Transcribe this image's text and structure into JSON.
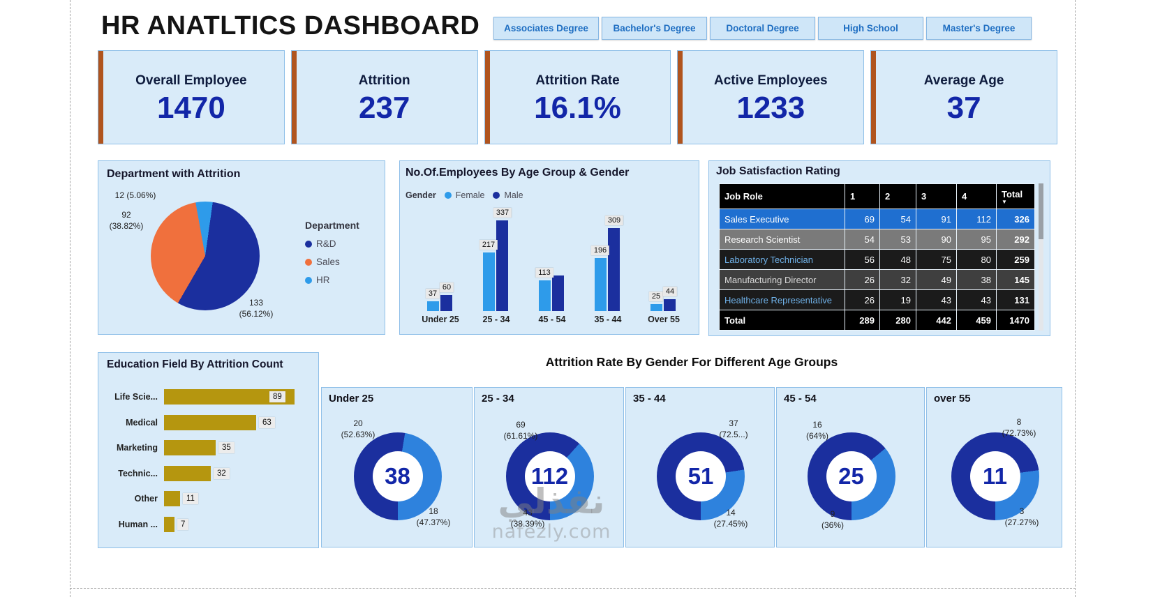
{
  "page": {
    "title": "HR ANATLTICS DASHBOARD",
    "watermark_line1": "نفذلي",
    "watermark_line2": "nafezly.com"
  },
  "filters": [
    {
      "label": "Associates Degree"
    },
    {
      "label": "Bachelor's Degree"
    },
    {
      "label": "Doctoral Degree"
    },
    {
      "label": "High School"
    },
    {
      "label": "Master's Degree"
    }
  ],
  "kpis": [
    {
      "label": "Overall Employee",
      "value": "1470"
    },
    {
      "label": "Attrition",
      "value": "237"
    },
    {
      "label": "Attrition Rate",
      "value": "16.1%"
    },
    {
      "label": "Active Employees",
      "value": "1233"
    },
    {
      "label": "Average Age",
      "value": "37"
    }
  ],
  "colors": {
    "navy": "#1b2f9e",
    "cyan": "#2e9bea",
    "donut_blue": "#2e82dd",
    "orange": "#f0703d",
    "gold": "#b5960f",
    "kpi_accent": "#b0541e",
    "panel_bg": "#d9ebf9",
    "panel_border": "#8fbfe8",
    "kpi_value_color": "#1226a8",
    "button_bg": "#cfe6f8",
    "button_text": "#1e6ec2",
    "table_highlight_row": "#1f6fd0"
  },
  "chart_data": [
    {
      "id": "department_pie",
      "type": "pie",
      "title": "Department with Attrition",
      "legend_title": "Department",
      "slices": [
        {
          "label": "R&D",
          "value": 133,
          "pct": 56.12,
          "value_label": "133",
          "pct_label": "(56.12%)",
          "color": "#1b2f9e"
        },
        {
          "label": "Sales",
          "value": 92,
          "pct": 38.82,
          "value_label": "92",
          "pct_label": "(38.82%)",
          "color": "#f0703d"
        },
        {
          "label": "HR",
          "value": 12,
          "pct": 5.06,
          "value_label": "12 (5.06%)",
          "pct_label": "",
          "color": "#2e9bea"
        }
      ]
    },
    {
      "id": "age_gender_bar",
      "type": "bar",
      "title": "No.Of.Employees By Age Group & Gender",
      "legend_title": "Gender",
      "categories": [
        "Under 25",
        "25 - 34",
        "45 - 54",
        "35 - 44",
        "Over 55"
      ],
      "series": [
        {
          "name": "Female",
          "color": "#2e9bea",
          "values": [
            37,
            217,
            113,
            196,
            25
          ],
          "labels": [
            "37",
            "217",
            "113",
            "196",
            "25"
          ]
        },
        {
          "name": "Male",
          "color": "#1b2f9e",
          "values": [
            60,
            337,
            132,
            309,
            44
          ],
          "labels": [
            "60",
            "337",
            "",
            "309",
            "44"
          ]
        }
      ],
      "ymax": 337,
      "grid": false,
      "legend_position": "top-left"
    },
    {
      "id": "job_satisfaction_table",
      "type": "table",
      "title": "Job Satisfaction Rating",
      "columns": [
        "Job Role",
        "1",
        "2",
        "3",
        "4",
        "Total"
      ],
      "sort_column": "Total",
      "sort_icon": "▼",
      "rows": [
        {
          "cells": [
            "Sales Executive",
            "69",
            "54",
            "91",
            "112",
            "326"
          ],
          "bg": "#1f6fd0",
          "name_color": "#ffffff"
        },
        {
          "cells": [
            "Research Scientist",
            "54",
            "53",
            "90",
            "95",
            "292"
          ],
          "bg": "#7a7a7a",
          "name_color": "#ffffff"
        },
        {
          "cells": [
            "Laboratory Technician",
            "56",
            "48",
            "75",
            "80",
            "259"
          ],
          "bg": "#1b1b1b",
          "name_color": "#6fb1e8"
        },
        {
          "cells": [
            "Manufacturing Director",
            "26",
            "32",
            "49",
            "38",
            "145"
          ],
          "bg": "#3f3f3f",
          "name_color": "#d9d9d9"
        },
        {
          "cells": [
            "Healthcare Representative",
            "26",
            "19",
            "43",
            "43",
            "131"
          ],
          "bg": "#1b1b1b",
          "name_color": "#6fb1e8"
        }
      ],
      "total_row": [
        "Total",
        "289",
        "280",
        "442",
        "459",
        "1470"
      ]
    },
    {
      "id": "education_attrition_bar",
      "type": "bar",
      "orientation": "horizontal",
      "title": "Education Field By Attrition Count",
      "categories": [
        "Life Scie...",
        "Medical",
        "Marketing",
        "Technic...",
        "Other",
        "Human ..."
      ],
      "values": [
        89,
        63,
        35,
        32,
        11,
        7
      ],
      "xmax": 89,
      "color": "#b5960f"
    },
    {
      "id": "attrition_donuts",
      "type": "pie",
      "variant": "donut-multiples",
      "title": "Attrition Rate By Gender For Different Age Groups",
      "donuts": [
        {
          "title": "Under 25",
          "center": "38",
          "seg1": {
            "value": "20",
            "pct": 52.63,
            "pct_label": "(52.63%)"
          },
          "seg2": {
            "value": "18",
            "pct": 47.37,
            "pct_label": "(47.37%)"
          }
        },
        {
          "title": "25 - 34",
          "center": "112",
          "seg1": {
            "value": "69",
            "pct": 61.61,
            "pct_label": "(61.61%)"
          },
          "seg2": {
            "value": "43",
            "pct": 38.39,
            "pct_label": "(38.39%)"
          }
        },
        {
          "title": "35 - 44",
          "center": "51",
          "seg1": {
            "value": "37",
            "pct": 72.55,
            "pct_label": "(72.5...)"
          },
          "seg2": {
            "value": "14",
            "pct": 27.45,
            "pct_label": "(27.45%)"
          }
        },
        {
          "title": "45 - 54",
          "center": "25",
          "seg1": {
            "value": "16",
            "pct": 64,
            "pct_label": "(64%)"
          },
          "seg2": {
            "value": "9",
            "pct": 36,
            "pct_label": "(36%)"
          }
        },
        {
          "title": "over 55",
          "center": "11",
          "seg1": {
            "value": "8",
            "pct": 72.73,
            "pct_label": "(72.73%)"
          },
          "seg2": {
            "value": "3",
            "pct": 27.27,
            "pct_label": "(27.27%)"
          }
        }
      ]
    }
  ]
}
